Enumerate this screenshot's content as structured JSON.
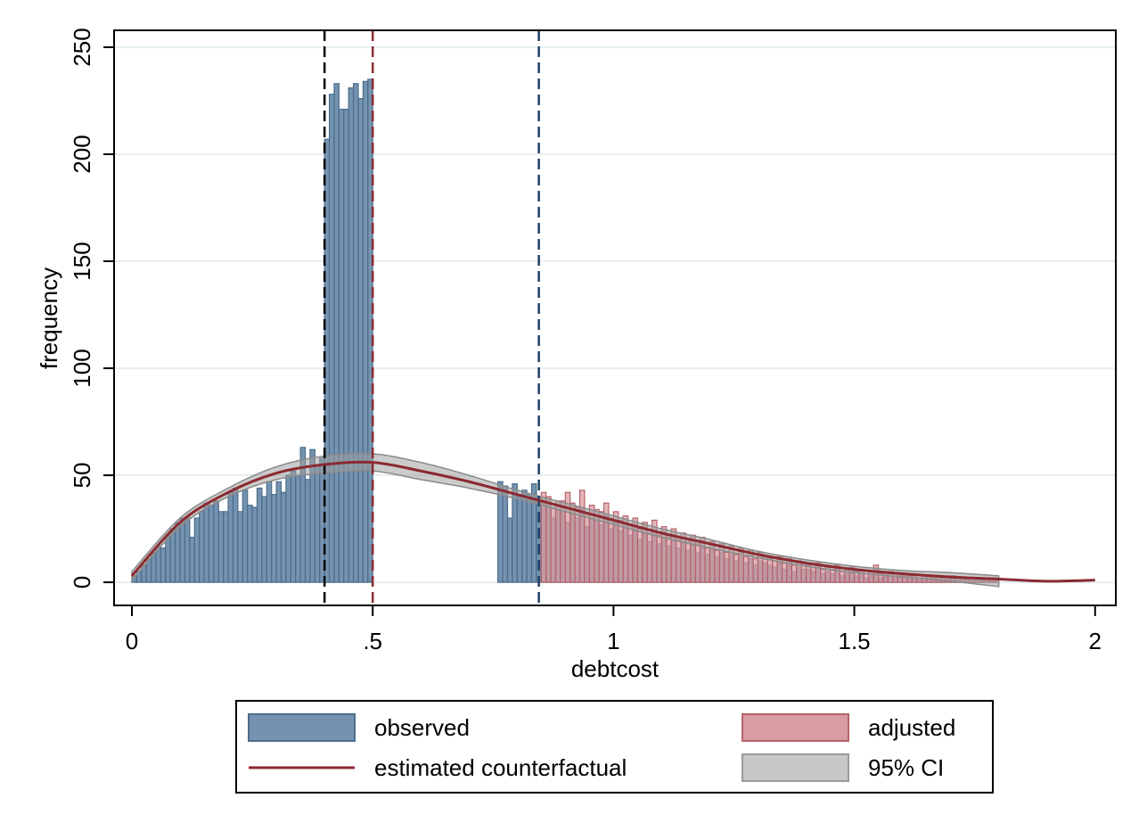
{
  "chart_data": {
    "type": "histogram",
    "xlabel": "debtcost",
    "ylabel": "frequency",
    "xlim": [
      -0.037,
      2.043
    ],
    "ylim": [
      -10.8,
      257.9
    ],
    "xticks": [
      0,
      {
        "value": 0.5,
        "label": ".5"
      },
      1,
      1.5,
      2
    ],
    "yticks": [
      0,
      50,
      100,
      150,
      200,
      250
    ],
    "grid": true,
    "legend_position": "bottom",
    "series": [
      {
        "name": "observed",
        "color": "#7593b0",
        "edge_color": "#4a6d8c",
        "bins": [
          0,
          0.01,
          0.02,
          0.03,
          0.04,
          0.05,
          0.06,
          0.07,
          0.08,
          0.09,
          0.1,
          0.11,
          0.12,
          0.13,
          0.14,
          0.15,
          0.16,
          0.17,
          0.18,
          0.19,
          0.2,
          0.21,
          0.22,
          0.23,
          0.24,
          0.25,
          0.26,
          0.27,
          0.28,
          0.29,
          0.3,
          0.31,
          0.32,
          0.33,
          0.34,
          0.35,
          0.36,
          0.37,
          0.38,
          0.39,
          0.4,
          0.41,
          0.42,
          0.43,
          0.44,
          0.45,
          0.46,
          0.47,
          0.48,
          0.49,
          0.5,
          0.51,
          0.52,
          0.53,
          0.54,
          0.55,
          0.56,
          0.57,
          0.58,
          0.59,
          0.6,
          0.61,
          0.62,
          0.63,
          0.64,
          0.65,
          0.66,
          0.67,
          0.68,
          0.69,
          0.7,
          0.71,
          0.72,
          0.73,
          0.74,
          0.75,
          0.76,
          0.77,
          0.78,
          0.79,
          0.8,
          0.81,
          0.82,
          0.83,
          0.84,
          0.85,
          0.86,
          0.87,
          0.88,
          0.89,
          0.9,
          0.91,
          0.92,
          0.93,
          0.94,
          0.95,
          0.96,
          0.97,
          0.98,
          0.99,
          1,
          1.01,
          1.02,
          1.03,
          1.04,
          1.05,
          1.06,
          1.07,
          1.08,
          1.09,
          1.1,
          1.11,
          1.12,
          1.13,
          1.14,
          1.15,
          1.16,
          1.17,
          1.18,
          1.19,
          1.2,
          1.21,
          1.22,
          1.23,
          1.24,
          1.25,
          1.26,
          1.27,
          1.28,
          1.29,
          1.3,
          1.31,
          1.32,
          1.33,
          1.34,
          1.35,
          1.36,
          1.37,
          1.38,
          1.39,
          1.4,
          1.41,
          1.42,
          1.43,
          1.44,
          1.45,
          1.46,
          1.47,
          1.48,
          1.49,
          1.5,
          1.51,
          1.52,
          1.53,
          1.54,
          1.55,
          1.56,
          1.57,
          1.58,
          1.59,
          1.6,
          1.61,
          1.62,
          1.63,
          1.64,
          1.65,
          1.66,
          1.67,
          1.68,
          1.69,
          1.7,
          1.71,
          1.72,
          1.73,
          1.74,
          1.75,
          1.76,
          1.77,
          1.78,
          1.79,
          1.8
        ],
        "values": [
          3,
          5,
          8,
          11,
          14,
          17,
          16,
          22,
          25,
          28,
          30,
          30,
          21,
          30,
          33,
          37,
          36,
          38,
          33,
          33,
          42,
          44,
          33,
          43,
          36,
          35,
          44,
          40,
          47,
          41,
          47,
          42,
          50,
          52,
          50,
          63,
          48,
          62,
          55,
          58,
          207,
          228,
          233,
          221,
          221,
          231,
          233,
          226,
          234,
          235,
          0,
          0,
          0,
          0,
          0,
          0,
          0,
          0,
          0,
          0,
          0,
          0,
          0,
          0,
          0,
          0,
          0,
          0,
          0,
          0,
          0,
          0,
          0,
          0,
          0,
          0,
          47,
          45,
          30,
          46,
          40,
          43,
          41,
          46,
          40,
          38,
          36,
          30,
          34,
          33,
          28,
          32,
          30,
          35,
          26,
          30,
          29,
          27,
          31,
          25,
          28,
          24,
          26,
          22,
          25,
          20,
          23,
          19,
          24,
          18,
          21,
          17,
          20,
          16,
          19,
          15,
          18,
          14,
          17,
          13,
          15,
          12,
          14,
          11,
          13,
          10,
          12,
          9,
          11,
          8,
          10,
          9,
          8,
          7,
          9,
          6,
          8,
          5,
          7,
          6,
          6,
          5,
          7,
          4,
          5,
          4,
          6,
          3,
          4,
          5,
          3,
          4,
          2,
          3,
          4,
          2,
          3,
          3,
          2,
          2,
          3,
          2,
          2,
          1,
          2,
          2,
          1,
          2,
          1,
          1,
          2,
          1,
          1,
          1,
          0,
          1,
          1,
          0,
          1,
          1
        ]
      },
      {
        "name": "adjusted",
        "color": "#d99ca2",
        "edge_color": "#b5636a",
        "bins": [
          0.85,
          0.86,
          0.87,
          0.88,
          0.89,
          0.9,
          0.91,
          0.92,
          0.93,
          0.94,
          0.95,
          0.96,
          0.97,
          0.98,
          0.99,
          1,
          1.01,
          1.02,
          1.03,
          1.04,
          1.05,
          1.06,
          1.07,
          1.08,
          1.09,
          1.1,
          1.11,
          1.12,
          1.13,
          1.14,
          1.15,
          1.16,
          1.17,
          1.18,
          1.19,
          1.2,
          1.21,
          1.22,
          1.23,
          1.24,
          1.25,
          1.26,
          1.27,
          1.28,
          1.29,
          1.3,
          1.31,
          1.32,
          1.33,
          1.34,
          1.35,
          1.36,
          1.37,
          1.38,
          1.39,
          1.4,
          1.41,
          1.42,
          1.43,
          1.44,
          1.45,
          1.46,
          1.47,
          1.48,
          1.49,
          1.5,
          1.51,
          1.52,
          1.53,
          1.54,
          1.55,
          1.56,
          1.57,
          1.58,
          1.59,
          1.6,
          1.61,
          1.62,
          1.63,
          1.64,
          1.65,
          1.66,
          1.67,
          1.68,
          1.69,
          1.7,
          1.71,
          1.72,
          1.73,
          1.74,
          1.75,
          1.76,
          1.77,
          1.78,
          1.79,
          1.8
        ],
        "values": [
          42,
          40,
          35,
          38,
          38,
          42,
          37,
          35,
          43,
          32,
          36,
          34,
          33,
          37,
          30,
          33,
          29,
          31,
          27,
          30,
          25,
          28,
          23,
          29,
          22,
          26,
          21,
          25,
          20,
          23,
          19,
          22,
          18,
          21,
          16,
          19,
          15,
          18,
          14,
          17,
          13,
          16,
          12,
          15,
          11,
          14,
          12,
          11,
          10,
          12,
          9,
          11,
          8,
          10,
          9,
          8,
          7,
          9,
          6,
          7,
          6,
          8,
          5,
          6,
          7,
          5,
          6,
          4,
          5,
          8,
          4,
          5,
          5,
          4,
          3,
          4,
          3,
          3,
          2,
          3,
          3,
          2,
          3,
          2,
          2,
          3,
          2,
          2,
          2,
          1,
          2,
          2,
          1,
          2,
          2
        ]
      }
    ],
    "line": {
      "name": "estimated counterfactual",
      "color": "#8b2a31",
      "x": [
        0,
        0.1,
        0.2,
        0.3,
        0.4,
        0.5,
        0.6,
        0.7,
        0.8,
        0.9,
        1,
        1.1,
        1.2,
        1.3,
        1.4,
        1.5,
        1.6,
        1.7,
        1.8,
        1.9,
        2
      ],
      "values": [
        3,
        28,
        42,
        51,
        55,
        56,
        52,
        47,
        41,
        35,
        29,
        23,
        18,
        13,
        9,
        6,
        4,
        2.5,
        1.5,
        0.5,
        1
      ]
    },
    "band": {
      "name": "95% CI",
      "color": "#a0a0a0",
      "x": [
        0,
        0.1,
        0.2,
        0.3,
        0.4,
        0.5,
        0.6,
        0.7,
        0.8,
        0.9,
        1,
        1.1,
        1.2,
        1.3,
        1.4,
        1.5,
        1.6,
        1.7,
        1.8
      ],
      "lower": [
        1,
        26,
        40,
        48,
        51,
        52,
        48,
        44,
        39,
        33,
        27,
        21,
        16,
        11.5,
        7.5,
        4.5,
        2.5,
        0.5,
        -2
      ],
      "upper": [
        5,
        30,
        44,
        54,
        59,
        60,
        56,
        50,
        43,
        37,
        31,
        25,
        20,
        14.5,
        10.5,
        7.5,
        5.5,
        4.5,
        3
      ]
    },
    "reference_lines": [
      {
        "x": 0.4,
        "color": "#000000"
      },
      {
        "x": 0.5,
        "color": "#8b2a31"
      },
      {
        "x": 0.845,
        "color": "#1f3f63"
      }
    ]
  }
}
